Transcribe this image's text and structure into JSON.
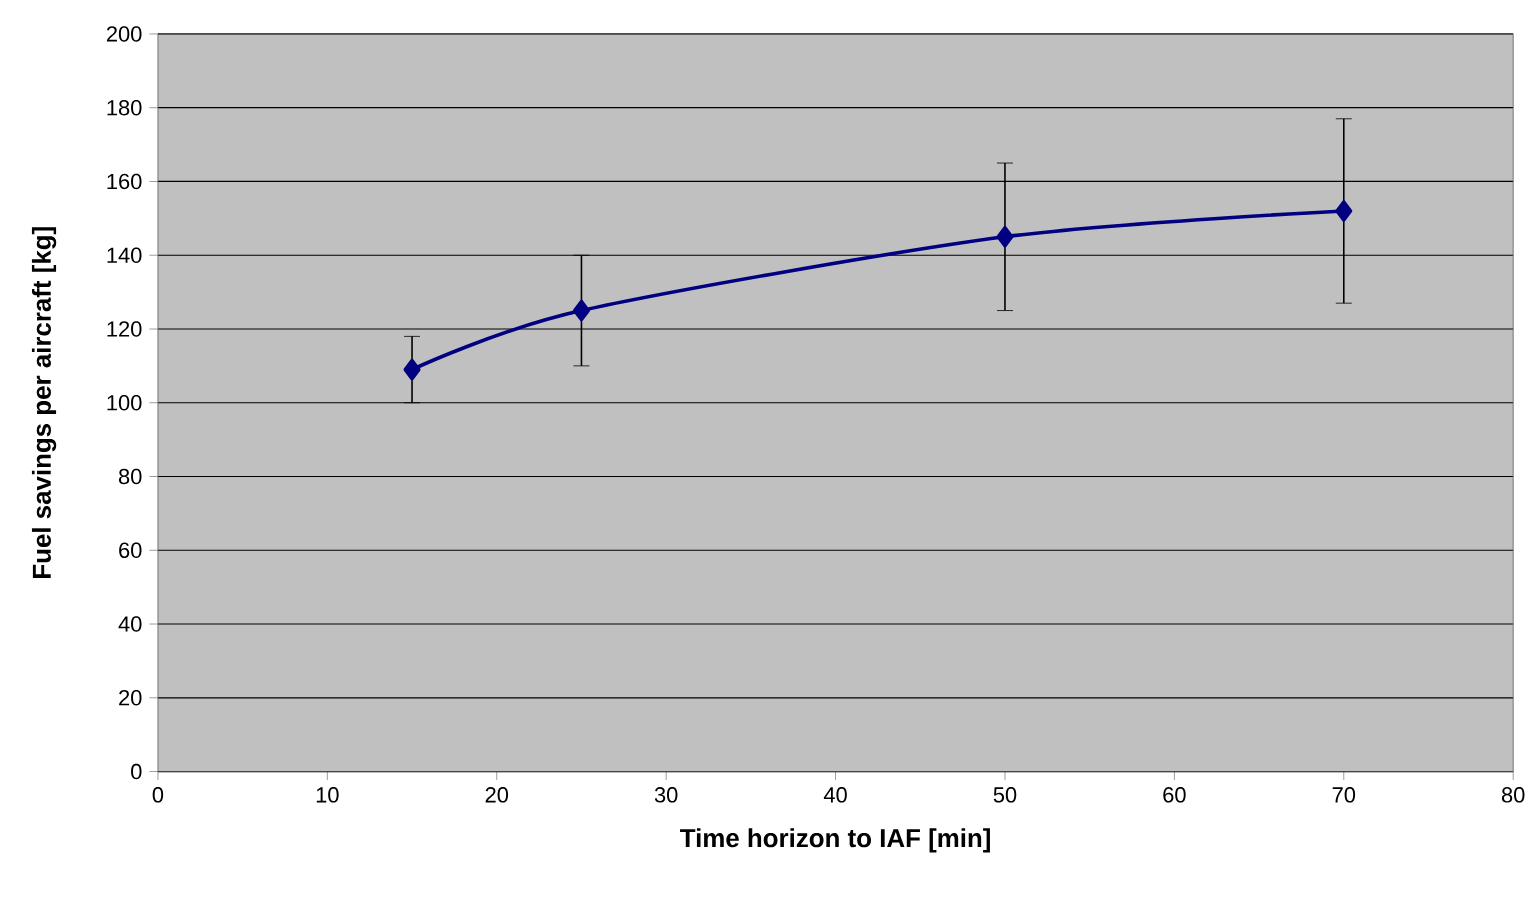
{
  "chart_data": {
    "type": "line",
    "xlabel": "Time horizon to IAF [min]",
    "ylabel": "Fuel savings per aircraft [kg]",
    "x": [
      15,
      25,
      50,
      70
    ],
    "series": [
      {
        "color": "#000080",
        "values": [
          109,
          125,
          145,
          152
        ],
        "errors": [
          9,
          15,
          20,
          25
        ]
      }
    ],
    "xlim": [
      0,
      80
    ],
    "xticks": [
      0,
      10,
      20,
      30,
      40,
      50,
      60,
      70,
      80
    ],
    "ylim": [
      0,
      200
    ],
    "yticks": [
      0,
      20,
      40,
      60,
      80,
      100,
      120,
      140,
      160,
      180,
      200
    ],
    "grid": "y",
    "marker": "diamond",
    "line_style": "solid"
  }
}
